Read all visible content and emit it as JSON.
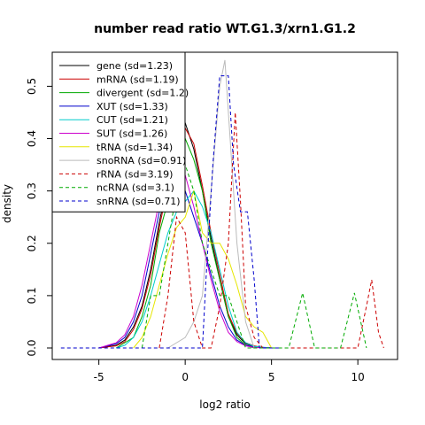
{
  "chart_data": {
    "type": "line",
    "title": "number read ratio WT.G1.3/xrn1.G1.2",
    "xlabel": "log2 ratio",
    "ylabel": "density",
    "xlim": [
      -7.7,
      12.3
    ],
    "ylim": [
      -0.022,
      0.565
    ],
    "xticks": [
      -5,
      0,
      5,
      10
    ],
    "yticks": [
      0.0,
      0.1,
      0.2,
      0.3,
      0.4,
      0.5
    ],
    "xtick_labels": [
      "-5",
      "0",
      "5",
      "10"
    ],
    "ytick_labels": [
      "0.0",
      "0.1",
      "0.2",
      "0.3",
      "0.4",
      "0.5"
    ],
    "grid": false,
    "legend_position": "top-left",
    "series": [
      {
        "name": "gene (sd=1.23)",
        "color": "#000000",
        "dash": "solid",
        "x": [
          -5,
          -4,
          -3.5,
          -3,
          -2.5,
          -2,
          -1.5,
          -1,
          -0.5,
          0,
          0.5,
          1,
          1.5,
          2,
          2.5,
          3,
          3.5,
          4,
          4.5,
          5
        ],
        "y": [
          0.0,
          0.005,
          0.015,
          0.04,
          0.08,
          0.15,
          0.24,
          0.32,
          0.39,
          0.43,
          0.38,
          0.3,
          0.21,
          0.13,
          0.06,
          0.025,
          0.008,
          0.003,
          0.001,
          0.0
        ]
      },
      {
        "name": "mRNA (sd=1.19)",
        "color": "#cc0000",
        "dash": "solid",
        "x": [
          -5,
          -4,
          -3.5,
          -3,
          -2.5,
          -2,
          -1.5,
          -1,
          -0.5,
          0,
          0.5,
          1,
          1.5,
          2,
          2.5,
          3,
          3.5,
          4,
          4.5,
          5
        ],
        "y": [
          0.0,
          0.004,
          0.012,
          0.035,
          0.075,
          0.14,
          0.23,
          0.31,
          0.38,
          0.42,
          0.39,
          0.31,
          0.22,
          0.14,
          0.065,
          0.028,
          0.01,
          0.004,
          0.001,
          0.0
        ]
      },
      {
        "name": "divergent (sd=1.2)",
        "color": "#00aa00",
        "dash": "solid",
        "x": [
          -4,
          -3,
          -2.5,
          -2,
          -1.5,
          -1,
          -0.5,
          0,
          0.5,
          1,
          1.5,
          2,
          2.5,
          3,
          3.5,
          4
        ],
        "y": [
          0.0,
          0.02,
          0.06,
          0.12,
          0.22,
          0.28,
          0.33,
          0.4,
          0.36,
          0.3,
          0.2,
          0.13,
          0.06,
          0.02,
          0.005,
          0.0
        ]
      },
      {
        "name": "XUT (sd=1.33)",
        "color": "#0000cc",
        "dash": "solid",
        "x": [
          -5,
          -4,
          -3.5,
          -3,
          -2.5,
          -2,
          -1.5,
          -1,
          -0.5,
          0,
          0.5,
          1,
          1.5,
          2,
          2.5,
          3,
          3.5,
          4,
          5
        ],
        "y": [
          0.0,
          0.008,
          0.02,
          0.05,
          0.1,
          0.18,
          0.26,
          0.31,
          0.33,
          0.3,
          0.25,
          0.2,
          0.14,
          0.08,
          0.04,
          0.015,
          0.005,
          0.002,
          0.0
        ]
      },
      {
        "name": "CUT (sd=1.21)",
        "color": "#00cccc",
        "dash": "solid",
        "x": [
          -4,
          -3.5,
          -3,
          -2.5,
          -2,
          -1.5,
          -1,
          -0.5,
          0,
          0.5,
          1,
          1.5,
          2,
          2.5,
          3,
          3.5,
          4,
          5
        ],
        "y": [
          0.0,
          0.005,
          0.02,
          0.05,
          0.1,
          0.16,
          0.22,
          0.26,
          0.28,
          0.3,
          0.27,
          0.22,
          0.15,
          0.08,
          0.03,
          0.01,
          0.003,
          0.0
        ]
      },
      {
        "name": "SUT (sd=1.26)",
        "color": "#cc00cc",
        "dash": "solid",
        "x": [
          -5,
          -4,
          -3.5,
          -3,
          -2.5,
          -2,
          -1.5,
          -1,
          -0.5,
          0,
          0.5,
          1,
          1.5,
          2,
          2.5,
          3,
          3.5,
          4,
          5
        ],
        "y": [
          0.0,
          0.01,
          0.025,
          0.06,
          0.12,
          0.2,
          0.28,
          0.34,
          0.36,
          0.33,
          0.27,
          0.2,
          0.13,
          0.07,
          0.03,
          0.012,
          0.004,
          0.001,
          0.0
        ]
      },
      {
        "name": "tRNA (sd=1.34)",
        "color": "#e6e600",
        "dash": "solid",
        "x": [
          -3,
          -2.5,
          -2,
          -1.5,
          -1,
          -0.5,
          0,
          0.5,
          1,
          1.5,
          2,
          2.5,
          3,
          3.5,
          4,
          4.5,
          5
        ],
        "y": [
          0.0,
          0.02,
          0.06,
          0.12,
          0.18,
          0.23,
          0.25,
          0.3,
          0.22,
          0.2,
          0.2,
          0.17,
          0.12,
          0.06,
          0.04,
          0.03,
          0.0
        ]
      },
      {
        "name": "snoRNA (sd=0.91)",
        "color": "#bbbbbb",
        "dash": "solid",
        "x": [
          -1,
          0,
          0.5,
          1,
          1.5,
          2,
          2.3,
          2.6,
          3,
          3.5,
          4
        ],
        "y": [
          0.0,
          0.02,
          0.05,
          0.1,
          0.3,
          0.5,
          0.55,
          0.4,
          0.2,
          0.05,
          0.0
        ]
      },
      {
        "name": "rRNA (sd=3.19)",
        "color": "#cc0000",
        "dash": "dashed",
        "x": [
          -1.5,
          -1,
          -0.5,
          0,
          0.5,
          1,
          1.5,
          2,
          2.5,
          2.9,
          3.2,
          3.5,
          4,
          4.5,
          5,
          10,
          10.5,
          10.8,
          11.2,
          11.5
        ],
        "y": [
          0.0,
          0.1,
          0.25,
          0.22,
          0.05,
          0.0,
          0.0,
          0.08,
          0.2,
          0.45,
          0.28,
          0.08,
          0.02,
          0.0,
          0.0,
          0.0,
          0.08,
          0.13,
          0.03,
          0.0
        ]
      },
      {
        "name": "ncRNA (sd=3.1)",
        "color": "#00aa00",
        "dash": "dashed",
        "x": [
          -2.5,
          -2,
          -1.5,
          -1,
          -0.5,
          0,
          0.5,
          1,
          1.5,
          2,
          2.5,
          3,
          3.5,
          4,
          4.5,
          5,
          6,
          6.8,
          7.5,
          9,
          9.8,
          10.5
        ],
        "y": [
          0.0,
          0.1,
          0.1,
          0.2,
          0.3,
          0.35,
          0.3,
          0.2,
          0.15,
          0.1,
          0.1,
          0.05,
          0.0,
          0.0,
          0.0,
          0.0,
          0.0,
          0.105,
          0.0,
          0.0,
          0.105,
          0.0
        ]
      },
      {
        "name": "snRNA (sd=0.71)",
        "color": "#0000cc",
        "dash": "dashed",
        "x": [
          -7.2,
          0.5,
          1,
          1.2,
          1.6,
          2,
          2.5,
          2.8,
          3.2,
          3.6,
          4,
          4.3,
          4.8,
          5,
          5.5
        ],
        "y": [
          0.0,
          0.0,
          0.0,
          0.13,
          0.35,
          0.52,
          0.52,
          0.35,
          0.26,
          0.26,
          0.13,
          0.0,
          0.0,
          0.0,
          0.0
        ]
      }
    ]
  }
}
